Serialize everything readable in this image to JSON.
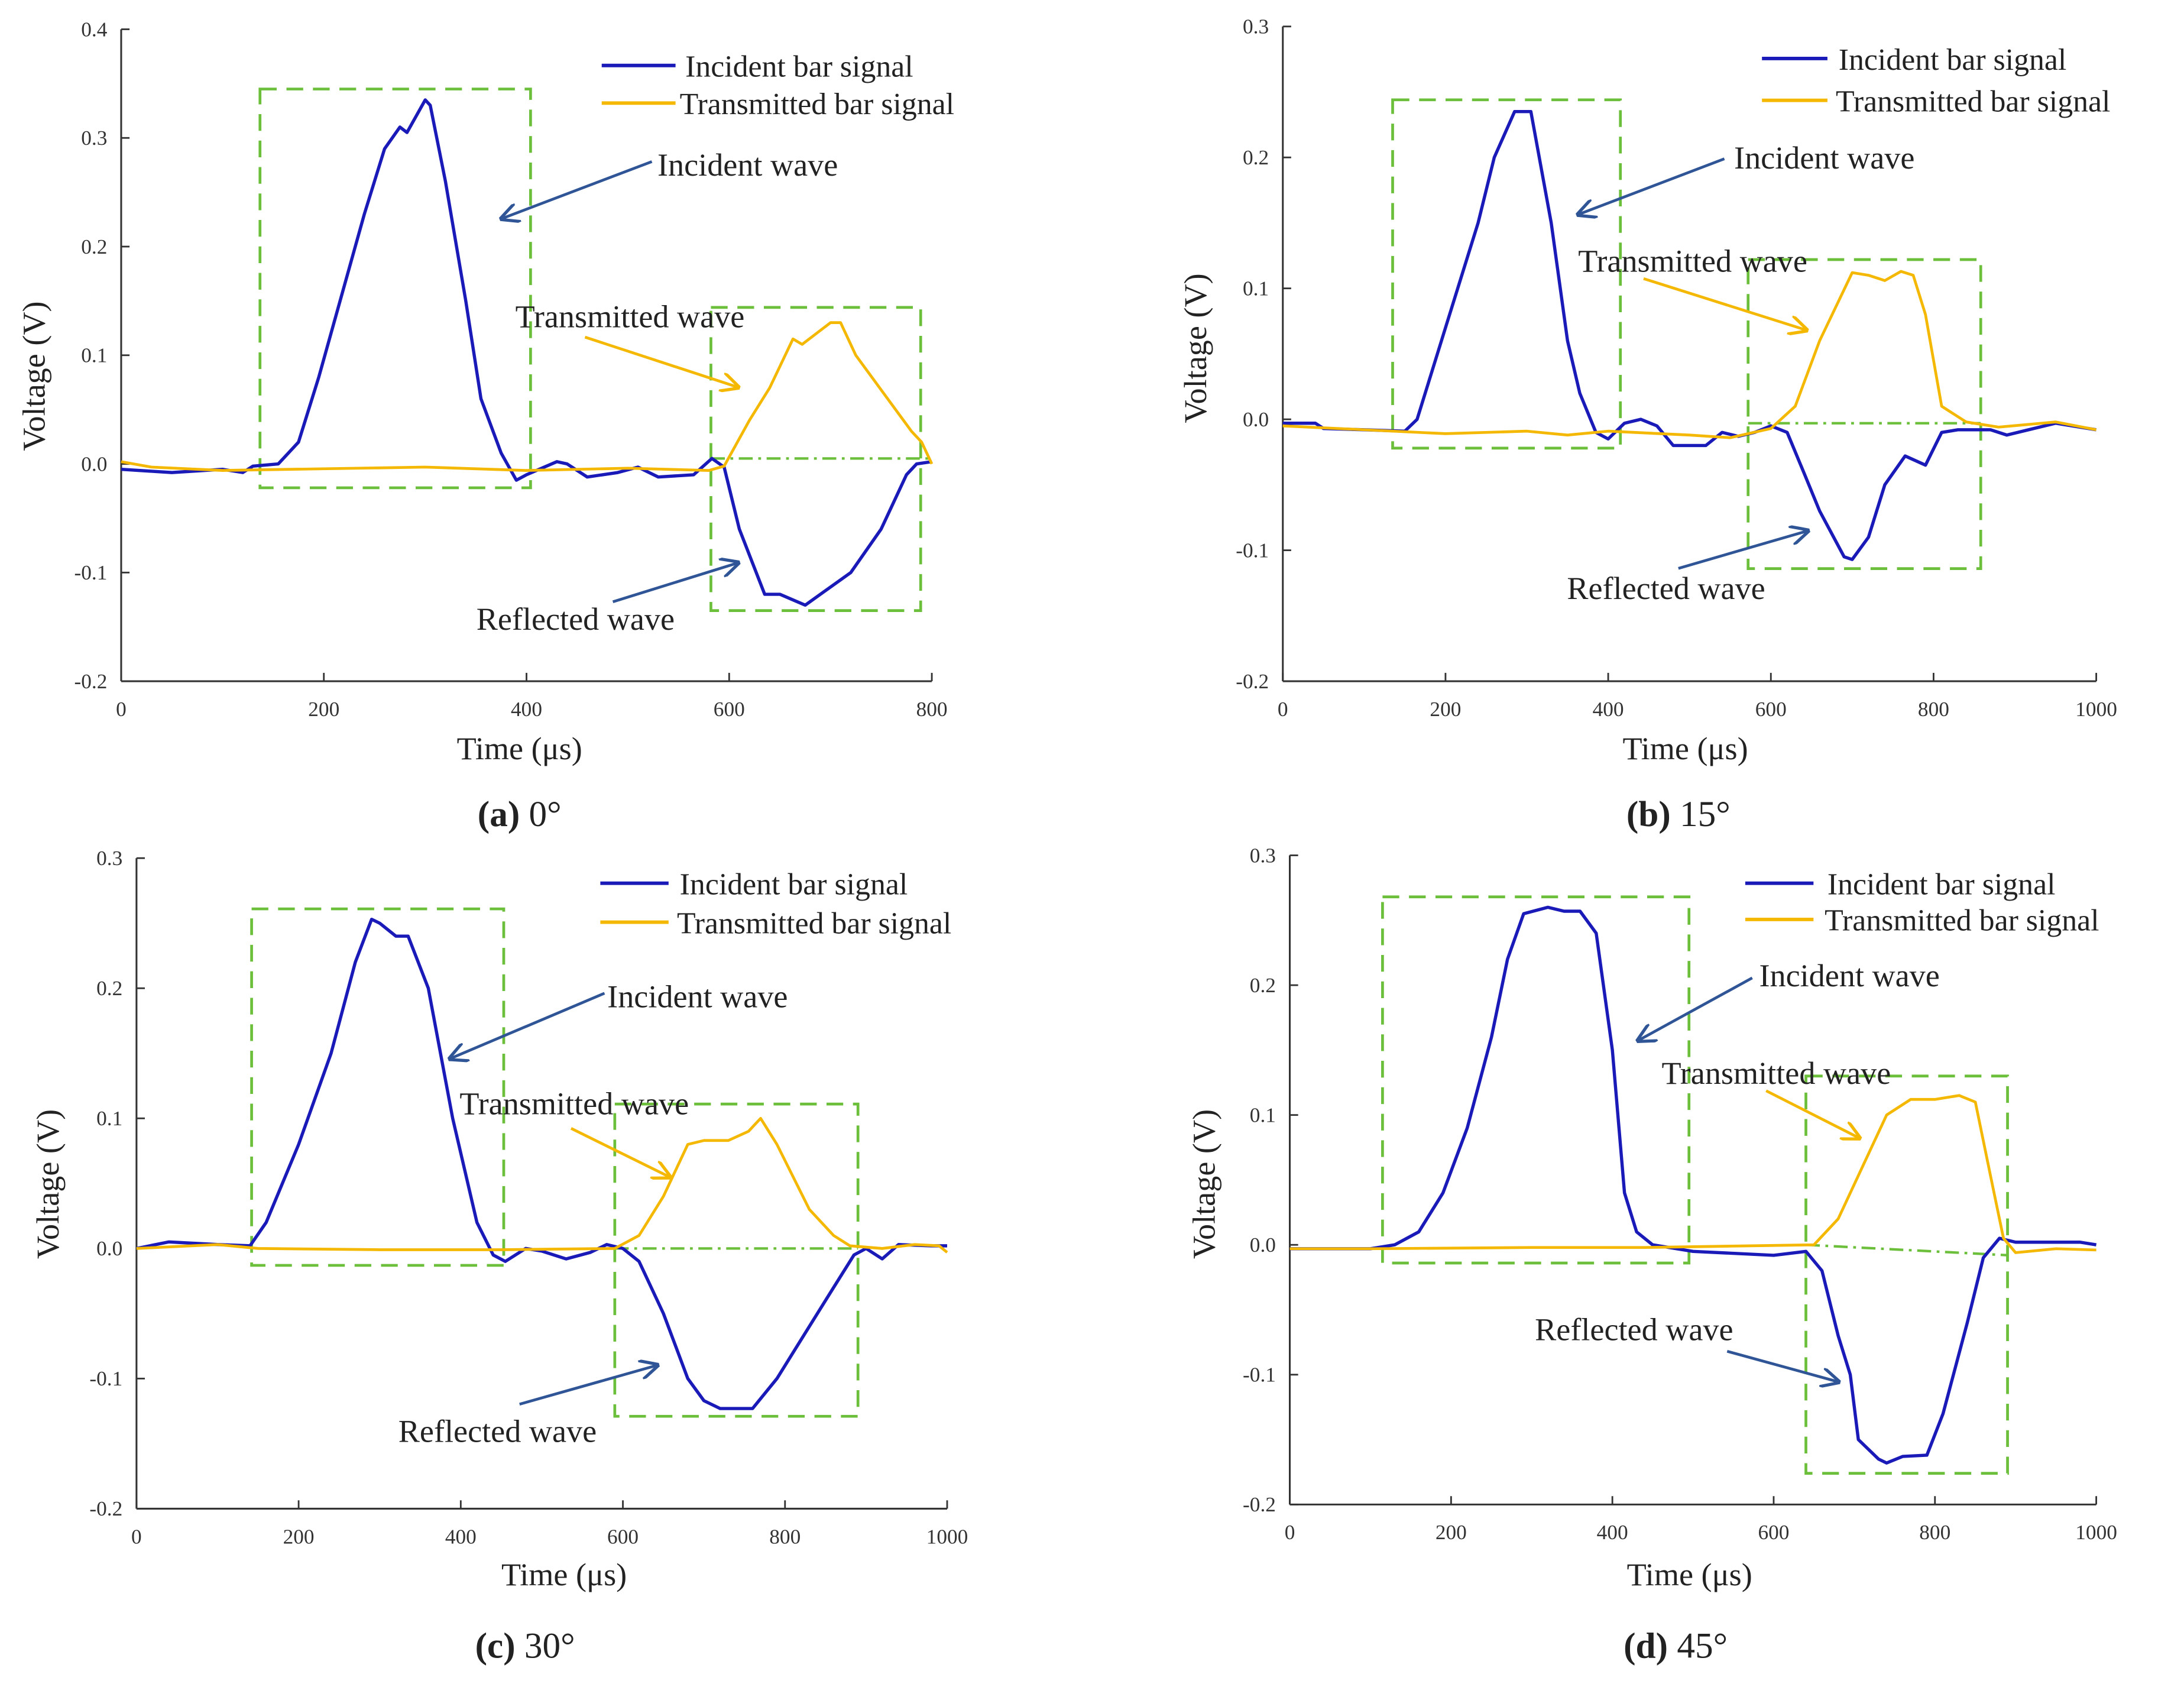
{
  "colors": {
    "incident": "#1a1ab8",
    "transmitted": "#f5b800",
    "box": "#6cbf3a",
    "arrow_incident": "#2f5597",
    "arrow_transmitted": "#f5b800"
  },
  "chart_data": [
    {
      "type": "line",
      "caption_letter": "(a)",
      "caption_text": " 0°",
      "xlabel": "Time (μs)",
      "ylabel": "Voltage   (V)",
      "xlim": [
        0,
        800
      ],
      "ylim": [
        -0.2,
        0.4
      ],
      "xticks": [
        "0",
        "200",
        "400",
        "600",
        "800"
      ],
      "yticks": [
        "0.4",
        "0.3",
        "0.2",
        "0.1",
        "0.0",
        "-0.1",
        "-0.2"
      ],
      "legend": [
        "Incident bar signal",
        "Transmitted bar signal"
      ],
      "annotations": [
        "Incident wave",
        "Transmitted wave",
        "Reflected wave"
      ],
      "series": [
        {
          "name": "Incident bar signal",
          "x": [
            0,
            50,
            100,
            120,
            130,
            155,
            175,
            195,
            210,
            240,
            260,
            275,
            282,
            300,
            305,
            320,
            340,
            355,
            375,
            390,
            400,
            430,
            440,
            460,
            490,
            510,
            530,
            565,
            583,
            595,
            610,
            635,
            650,
            675,
            720,
            750,
            775,
            785,
            800
          ],
          "y": [
            -0.005,
            -0.008,
            -0.005,
            -0.008,
            -0.002,
            0,
            0.02,
            0.08,
            0.13,
            0.23,
            0.29,
            0.31,
            0.305,
            0.335,
            0.33,
            0.26,
            0.15,
            0.06,
            0.01,
            -0.015,
            -0.01,
            0.002,
            0,
            -0.012,
            -0.008,
            -0.003,
            -0.012,
            -0.01,
            0.005,
            -0.003,
            -0.06,
            -0.12,
            -0.12,
            -0.13,
            -0.1,
            -0.06,
            -0.01,
            0,
            0.002
          ]
        },
        {
          "name": "Transmitted bar signal",
          "x": [
            0,
            30,
            100,
            300,
            400,
            500,
            580,
            595,
            620,
            640,
            663,
            672,
            700,
            710,
            725,
            780,
            790,
            800
          ],
          "y": [
            0.002,
            -0.003,
            -0.006,
            -0.003,
            -0.006,
            -0.004,
            -0.006,
            -0.002,
            0.04,
            0.07,
            0.115,
            0.11,
            0.13,
            0.13,
            0.1,
            0.03,
            0.02,
            0
          ]
        }
      ],
      "boxes": [
        {
          "x": [
            137,
            404
          ],
          "y": [
            -0.022,
            0.345
          ]
        },
        {
          "x": [
            582,
            789
          ],
          "y": [
            -0.135,
            0.144
          ]
        }
      ],
      "dashdot": {
        "x": [
          582,
          800
        ],
        "y": [
          0.005,
          0.005
        ]
      }
    },
    {
      "type": "line",
      "caption_letter": "(b)",
      "caption_text": " 15°",
      "xlabel": "Time  (μs)",
      "ylabel": "Voltage (V)",
      "xlim": [
        0,
        1000
      ],
      "ylim": [
        -0.2,
        0.3
      ],
      "xticks": [
        "0",
        "200",
        "400",
        "600",
        "800",
        "1000"
      ],
      "yticks": [
        "0.3",
        "0.2",
        "0.1",
        "0.0",
        "-0.1",
        "-0.2"
      ],
      "legend": [
        "Incident bar signal",
        "Transmitted bar signal"
      ],
      "annotations": [
        "Incident wave",
        "Transmitted wave",
        "Reflected wave"
      ],
      "series": [
        {
          "name": "Incident bar signal",
          "x": [
            0,
            40,
            50,
            100,
            150,
            165,
            200,
            240,
            260,
            285,
            305,
            330,
            350,
            365,
            385,
            400,
            420,
            440,
            460,
            480,
            520,
            540,
            560,
            580,
            600,
            620,
            640,
            660,
            690,
            700,
            720,
            740,
            765,
            790,
            810,
            830,
            870,
            890,
            950,
            1000
          ],
          "y": [
            -0.003,
            -0.003,
            -0.007,
            -0.008,
            -0.009,
            0,
            0.07,
            0.15,
            0.2,
            0.235,
            0.235,
            0.15,
            0.06,
            0.02,
            -0.01,
            -0.015,
            -0.003,
            0,
            -0.005,
            -0.02,
            -0.02,
            -0.01,
            -0.013,
            -0.01,
            -0.005,
            -0.01,
            -0.04,
            -0.07,
            -0.105,
            -0.107,
            -0.09,
            -0.05,
            -0.028,
            -0.035,
            -0.01,
            -0.008,
            -0.008,
            -0.012,
            -0.003,
            -0.008
          ]
        },
        {
          "name": "Transmitted bar signal",
          "x": [
            0,
            100,
            200,
            300,
            350,
            400,
            500,
            550,
            600,
            630,
            660,
            700,
            720,
            740,
            760,
            775,
            790,
            810,
            840,
            880,
            950,
            1000
          ],
          "y": [
            -0.005,
            -0.008,
            -0.011,
            -0.009,
            -0.012,
            -0.009,
            -0.012,
            -0.014,
            -0.007,
            0.01,
            0.06,
            0.112,
            0.11,
            0.106,
            0.113,
            0.11,
            0.08,
            0.01,
            -0.002,
            -0.006,
            -0.002,
            -0.008
          ]
        }
      ],
      "boxes": [
        {
          "x": [
            135,
            415
          ],
          "y": [
            -0.022,
            0.244
          ]
        },
        {
          "x": [
            572,
            858
          ],
          "y": [
            -0.114,
            0.122
          ]
        }
      ],
      "dashdot": {
        "x": [
          572,
          858
        ],
        "y": [
          -0.003,
          -0.003
        ]
      }
    },
    {
      "type": "line",
      "caption_letter": "(c)",
      "caption_text": " 30°",
      "xlabel": "Time (μs)",
      "ylabel": "Voltage (V)",
      "xlim": [
        0,
        1000
      ],
      "ylim": [
        -0.2,
        0.3
      ],
      "xticks": [
        "0",
        "200",
        "400",
        "600",
        "800",
        "1000"
      ],
      "yticks": [
        "0.3",
        "0.2",
        "0.1",
        "0.0",
        "-0.1",
        "-0.2"
      ],
      "legend": [
        "Incident bar signal",
        "Transmitted bar signal"
      ],
      "annotations": [
        "Incident wave",
        "Transmitted wave",
        "Reflected wave"
      ],
      "series": [
        {
          "name": "Incident bar signal",
          "x": [
            0,
            40,
            100,
            140,
            160,
            200,
            240,
            270,
            290,
            300,
            320,
            335,
            360,
            390,
            420,
            440,
            455,
            480,
            500,
            530,
            560,
            580,
            600,
            620,
            650,
            680,
            700,
            720,
            760,
            790,
            820,
            860,
            885,
            900,
            920,
            940,
            980,
            1000
          ],
          "y": [
            0,
            0.005,
            0.003,
            0.002,
            0.02,
            0.08,
            0.15,
            0.22,
            0.253,
            0.25,
            0.24,
            0.24,
            0.2,
            0.1,
            0.02,
            -0.005,
            -0.01,
            0,
            -0.002,
            -0.008,
            -0.003,
            0.003,
            0,
            -0.01,
            -0.05,
            -0.1,
            -0.117,
            -0.123,
            -0.123,
            -0.1,
            -0.07,
            -0.03,
            -0.005,
            0,
            -0.008,
            0.003,
            0.002,
            0.002
          ]
        },
        {
          "name": "Transmitted bar signal",
          "x": [
            0,
            100,
            150,
            300,
            450,
            590,
            620,
            650,
            680,
            700,
            730,
            755,
            770,
            790,
            830,
            860,
            880,
            920,
            960,
            990,
            1000
          ],
          "y": [
            0,
            0.003,
            0,
            -0.001,
            -0.001,
            0,
            0.01,
            0.04,
            0.08,
            0.083,
            0.083,
            0.09,
            0.1,
            0.08,
            0.03,
            0.01,
            0.002,
            0,
            0.003,
            0.002,
            -0.003
          ]
        }
      ],
      "boxes": [
        {
          "x": [
            142,
            453
          ],
          "y": [
            -0.013,
            0.261
          ]
        },
        {
          "x": [
            590,
            890
          ],
          "y": [
            -0.129,
            0.111
          ]
        }
      ],
      "dashdot": {
        "x": [
          590,
          890
        ],
        "y": [
          0,
          0
        ]
      }
    },
    {
      "type": "line",
      "caption_letter": "(d)",
      "caption_text": " 45°",
      "xlabel": "Time  (μs)",
      "ylabel": "Voltage  (V)",
      "xlim": [
        0,
        1000
      ],
      "ylim": [
        -0.2,
        0.3
      ],
      "xticks": [
        "0",
        "200",
        "400",
        "600",
        "800",
        "1000"
      ],
      "yticks": [
        "0.3",
        "0.2",
        "0.1",
        "0.0",
        "-0.1",
        "-0.2"
      ],
      "legend": [
        "Incident bar signal",
        "Transmitted bar signal"
      ],
      "annotations": [
        "Incident wave",
        "Transmitted wave",
        "Reflected wave"
      ],
      "series": [
        {
          "name": "Incident bar signal",
          "x": [
            0,
            100,
            130,
            160,
            190,
            220,
            250,
            270,
            290,
            320,
            340,
            360,
            380,
            400,
            415,
            430,
            450,
            500,
            600,
            640,
            660,
            680,
            695,
            705,
            730,
            740,
            760,
            790,
            810,
            840,
            860,
            880,
            900,
            980,
            1000
          ],
          "y": [
            -0.003,
            -0.003,
            0,
            0.01,
            0.04,
            0.09,
            0.16,
            0.22,
            0.255,
            0.26,
            0.257,
            0.257,
            0.24,
            0.15,
            0.04,
            0.01,
            0,
            -0.005,
            -0.008,
            -0.005,
            -0.02,
            -0.07,
            -0.1,
            -0.15,
            -0.165,
            -0.168,
            -0.163,
            -0.162,
            -0.13,
            -0.06,
            -0.01,
            0.005,
            0.002,
            0.002,
            0
          ]
        },
        {
          "name": "Transmitted bar signal",
          "x": [
            0,
            100,
            300,
            440,
            650,
            680,
            710,
            740,
            770,
            800,
            830,
            850,
            870,
            885,
            900,
            950,
            1000
          ],
          "y": [
            -0.003,
            -0.003,
            -0.002,
            -0.002,
            0,
            0.02,
            0.06,
            0.1,
            0.112,
            0.112,
            0.115,
            0.11,
            0.05,
            0.005,
            -0.006,
            -0.003,
            -0.004
          ]
        }
      ],
      "boxes": [
        {
          "x": [
            115,
            495
          ],
          "y": [
            -0.014,
            0.268
          ]
        },
        {
          "x": [
            640,
            890
          ],
          "y": [
            -0.176,
            0.13
          ]
        }
      ],
      "dashdot": {
        "x": [
          640,
          890
        ],
        "y": [
          0,
          -0.008
        ]
      }
    }
  ]
}
